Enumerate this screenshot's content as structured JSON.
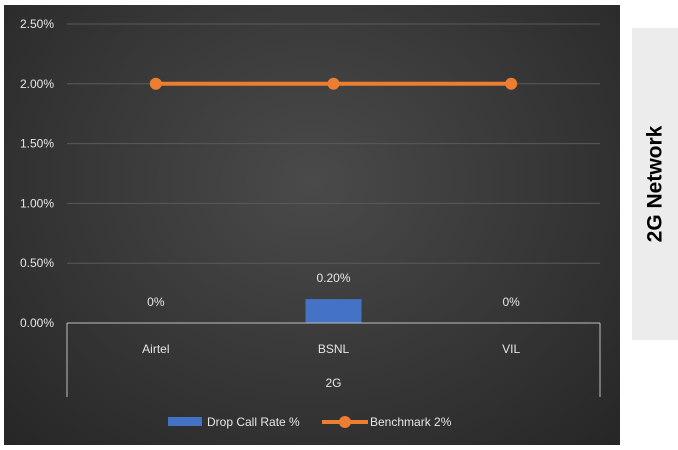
{
  "side_panel": {
    "title": "2G Network"
  },
  "colors": {
    "bar": "#4472c4",
    "line": "#ed7d31",
    "grid": "#5a5a5a",
    "text": "#e6e6e6"
  },
  "chart_data": {
    "type": "bar",
    "categories": [
      "Airtel",
      "BSNL",
      "VIL"
    ],
    "group_label": "2G",
    "y_ticks": [
      "0.00%",
      "0.50%",
      "1.00%",
      "1.50%",
      "2.00%",
      "2.50%"
    ],
    "ylim": [
      0,
      2.5
    ],
    "grid": true,
    "legend_position": "bottom",
    "series": [
      {
        "name": "Drop Call Rate %",
        "type": "bar",
        "values": [
          0,
          0.2,
          0
        ],
        "data_labels": [
          "0%",
          "0.20%",
          "0%"
        ]
      },
      {
        "name": "Benchmark 2%",
        "type": "line",
        "values": [
          2,
          2,
          2
        ]
      }
    ]
  }
}
